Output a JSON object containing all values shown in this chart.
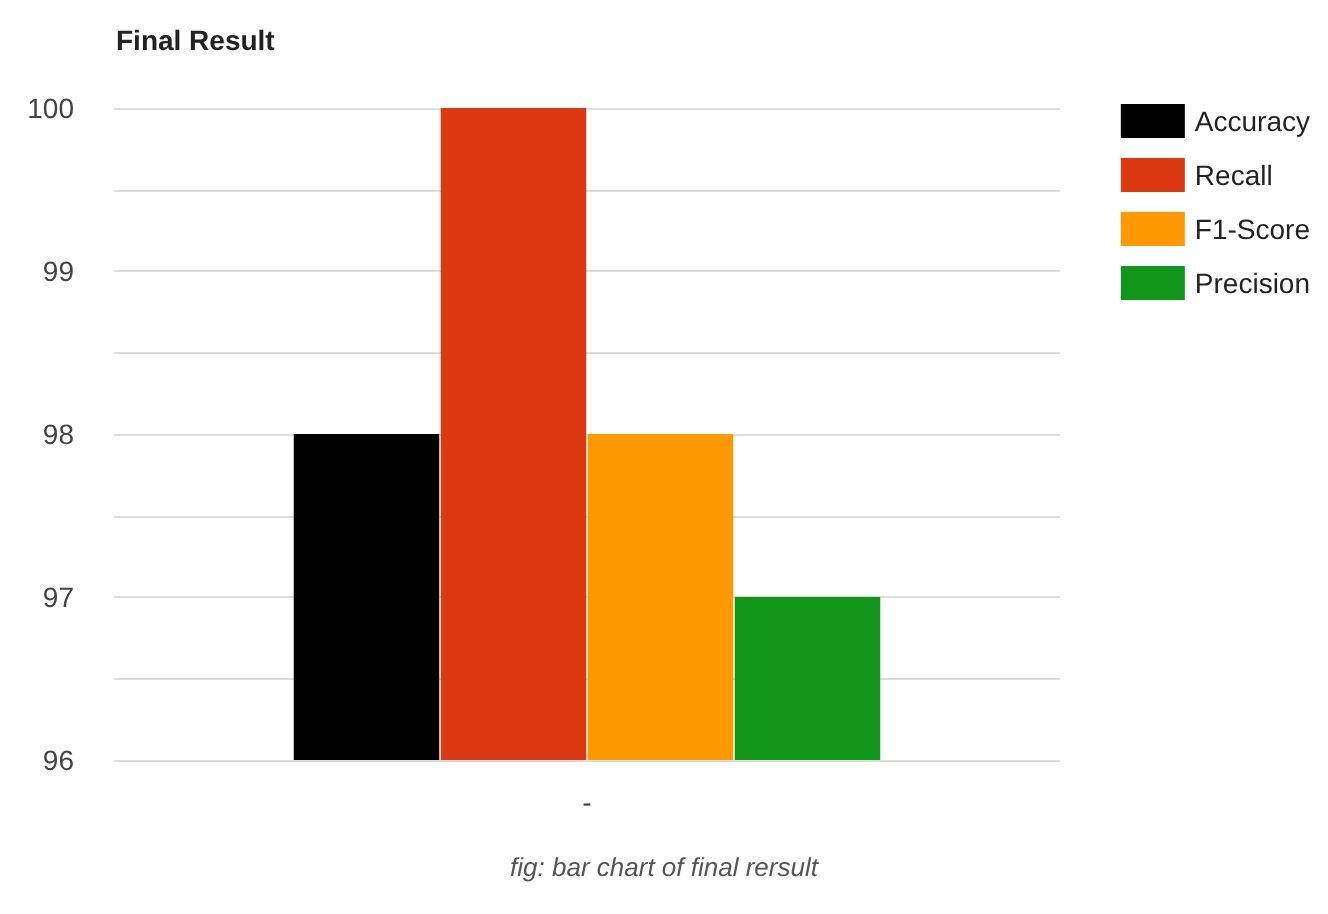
{
  "chart_data": {
    "type": "bar",
    "title": "Final Result",
    "annotations": [
      "fig: bar chart of final rersult"
    ],
    "categories": [
      "-"
    ],
    "series": [
      {
        "name": "Accuracy",
        "color": "#000000",
        "values": [
          98
        ]
      },
      {
        "name": "Recall",
        "color": "#dc3912",
        "values": [
          100
        ]
      },
      {
        "name": "F1-Score",
        "color": "#ff9900",
        "values": [
          98
        ]
      },
      {
        "name": "Precision",
        "color": "#109618",
        "values": [
          97
        ]
      }
    ],
    "ylim": [
      96,
      100
    ],
    "yticks": [
      96,
      {
        "value": 96.5,
        "label": null
      },
      97,
      {
        "value": 97.5,
        "label": null
      },
      98,
      {
        "value": 98.5,
        "label": null
      },
      99,
      {
        "value": 99.5,
        "label": null
      },
      100
    ],
    "grid": "y",
    "legend": "top right"
  }
}
